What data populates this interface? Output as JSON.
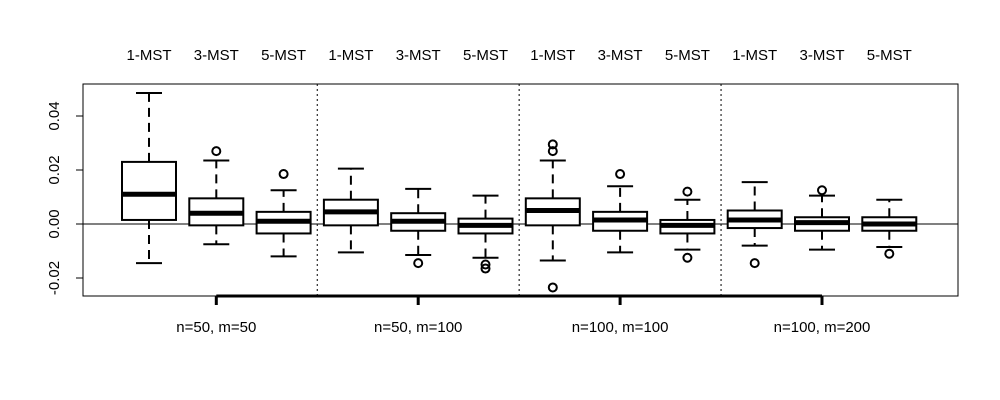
{
  "chart_data": {
    "type": "box",
    "title": "",
    "xlabel": "",
    "ylabel": "",
    "ylim": [
      -0.026,
      0.05
    ],
    "y_ticks": [
      -0.02,
      0.0,
      0.02,
      0.04
    ],
    "y_tick_labels": [
      "-0.02",
      "0.00",
      "0.02",
      "0.04"
    ],
    "reference_line": 0,
    "groups": [
      {
        "label": "n=50, m=50",
        "boxes": [
          {
            "name": "1-MST",
            "whisker_low": -0.0145,
            "q1": 0.0015,
            "median": 0.011,
            "q3": 0.023,
            "whisker_high": 0.0485,
            "outliers": []
          },
          {
            "name": "3-MST",
            "whisker_low": -0.0075,
            "q1": -0.0005,
            "median": 0.004,
            "q3": 0.0095,
            "whisker_high": 0.0235,
            "outliers": [
              0.027
            ]
          },
          {
            "name": "5-MST",
            "whisker_low": -0.012,
            "q1": -0.0035,
            "median": 0.001,
            "q3": 0.0045,
            "whisker_high": 0.0125,
            "outliers": [
              0.0185
            ]
          }
        ]
      },
      {
        "label": "n=50, m=100",
        "boxes": [
          {
            "name": "1-MST",
            "whisker_low": -0.0105,
            "q1": -0.0005,
            "median": 0.0045,
            "q3": 0.009,
            "whisker_high": 0.0205,
            "outliers": []
          },
          {
            "name": "3-MST",
            "whisker_low": -0.0115,
            "q1": -0.0025,
            "median": 0.001,
            "q3": 0.004,
            "whisker_high": 0.013,
            "outliers": [
              -0.0145
            ]
          },
          {
            "name": "5-MST",
            "whisker_low": -0.0125,
            "q1": -0.0035,
            "median": -0.0005,
            "q3": 0.002,
            "whisker_high": 0.0105,
            "outliers": [
              -0.015,
              -0.0165
            ]
          }
        ]
      },
      {
        "label": "n=100, m=100",
        "boxes": [
          {
            "name": "1-MST",
            "whisker_low": -0.0135,
            "q1": -0.0005,
            "median": 0.005,
            "q3": 0.0095,
            "whisker_high": 0.0235,
            "outliers": [
              0.027,
              0.0295,
              -0.0235
            ]
          },
          {
            "name": "3-MST",
            "whisker_low": -0.0105,
            "q1": -0.0025,
            "median": 0.0015,
            "q3": 0.0045,
            "whisker_high": 0.014,
            "outliers": [
              0.0185
            ]
          },
          {
            "name": "5-MST",
            "whisker_low": -0.0095,
            "q1": -0.0035,
            "median": -0.0005,
            "q3": 0.0015,
            "whisker_high": 0.009,
            "outliers": [
              0.012,
              -0.0125
            ]
          }
        ]
      },
      {
        "label": "n=100, m=200",
        "boxes": [
          {
            "name": "1-MST",
            "whisker_low": -0.008,
            "q1": -0.0015,
            "median": 0.0015,
            "q3": 0.005,
            "whisker_high": 0.0155,
            "outliers": [
              -0.0145
            ]
          },
          {
            "name": "3-MST",
            "whisker_low": -0.0095,
            "q1": -0.0025,
            "median": 0.0005,
            "q3": 0.0025,
            "whisker_high": 0.0105,
            "outliers": [
              0.0125
            ]
          },
          {
            "name": "5-MST",
            "whisker_low": -0.0085,
            "q1": -0.0025,
            "median": 0.0,
            "q3": 0.0025,
            "whisker_high": 0.009,
            "outliers": [
              -0.011
            ]
          }
        ]
      }
    ],
    "grid": false,
    "legend": "none"
  }
}
